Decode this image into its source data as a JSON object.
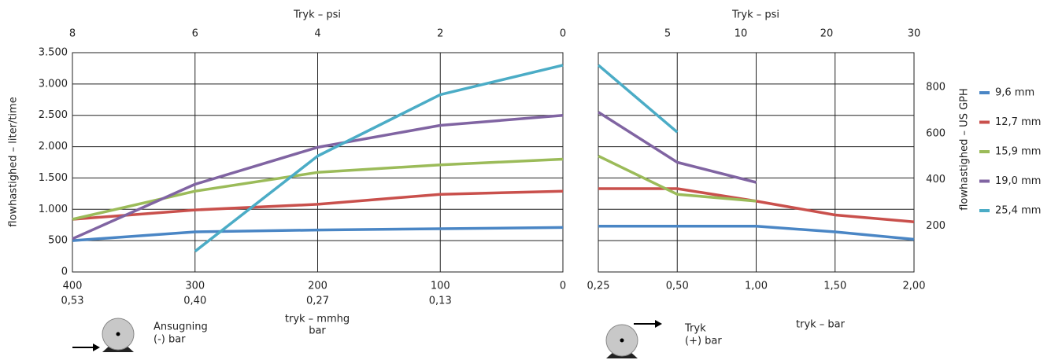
{
  "chart_data": [
    {
      "type": "line",
      "x2_label": "Tryk – psi",
      "y_label": "flowhastighed – liter/time",
      "x_label": "tryk – mmhg",
      "x_label_2": "bar",
      "annotations": [
        "Ansugning",
        "(-) bar"
      ],
      "x": [
        400,
        300,
        200,
        100,
        0
      ],
      "xlim": [
        400,
        0
      ],
      "xticks": [
        400,
        300,
        200,
        100,
        0
      ],
      "xticks_bar": [
        {
          "value": 0.53,
          "label": "0,53"
        },
        {
          "value": 0.4,
          "label": "0,40"
        },
        {
          "value": 0.27,
          "label": "0,27"
        },
        {
          "value": 0.13,
          "label": "0,13"
        }
      ],
      "x2lim": [
        8,
        0
      ],
      "x2ticks": [
        8,
        6,
        4,
        2,
        0
      ],
      "ylim": [
        0,
        3500
      ],
      "yticks": [
        0,
        500,
        {
          "value": 1000,
          "label": "1.000"
        },
        {
          "value": 1500,
          "label": "1.500"
        },
        {
          "value": 2000,
          "label": "2.000"
        },
        {
          "value": 2500,
          "label": "2.500"
        },
        {
          "value": 3000,
          "label": "3.000"
        },
        {
          "value": 3500,
          "label": "3.500"
        }
      ],
      "grid": true,
      "series": [
        {
          "name": "9,6 mm",
          "color": "#4a86c5",
          "values": [
            500,
            640,
            670,
            690,
            710
          ]
        },
        {
          "name": "12,7 mm",
          "color": "#c9504c",
          "values": [
            840,
            990,
            1080,
            1240,
            1290
          ]
        },
        {
          "name": "15,9 mm",
          "color": "#9bbb59",
          "values": [
            840,
            1290,
            1590,
            1710,
            1800
          ]
        },
        {
          "name": "19,0 mm",
          "color": "#8064a2",
          "values": [
            530,
            1400,
            1990,
            2340,
            2500
          ]
        },
        {
          "name": "25,4 mm",
          "color": "#4bacc6",
          "values": [
            null,
            330,
            1850,
            2830,
            3300
          ]
        }
      ]
    },
    {
      "type": "line",
      "x2_label": "Tryk – psi",
      "x_label": "tryk – bar",
      "y2_label": "flowhastighed – US GPH",
      "annotations": [
        "Tryk",
        "(+) bar"
      ],
      "categories": [
        "0,25",
        "0,50",
        "1,00",
        "1,50",
        "2,00"
      ],
      "x2ticks": [
        5,
        10,
        20,
        30
      ],
      "ylim": [
        0,
        3500
      ],
      "y2lim": [
        0,
        950
      ],
      "y2ticks": [
        200,
        400,
        600,
        800
      ],
      "grid": true,
      "series": [
        {
          "color": "#4a86c5",
          "values": [
            730,
            730,
            730,
            640,
            520
          ]
        },
        {
          "color": "#c9504c",
          "values": [
            1330,
            1330,
            1130,
            910,
            800
          ]
        },
        {
          "color": "#9bbb59",
          "values": [
            1850,
            1240,
            1130,
            null,
            null
          ]
        },
        {
          "color": "#8064a2",
          "values": [
            2550,
            1750,
            1430,
            null,
            null
          ]
        },
        {
          "color": "#4bacc6",
          "values": [
            3300,
            2230,
            null,
            null,
            null
          ]
        }
      ]
    }
  ]
}
